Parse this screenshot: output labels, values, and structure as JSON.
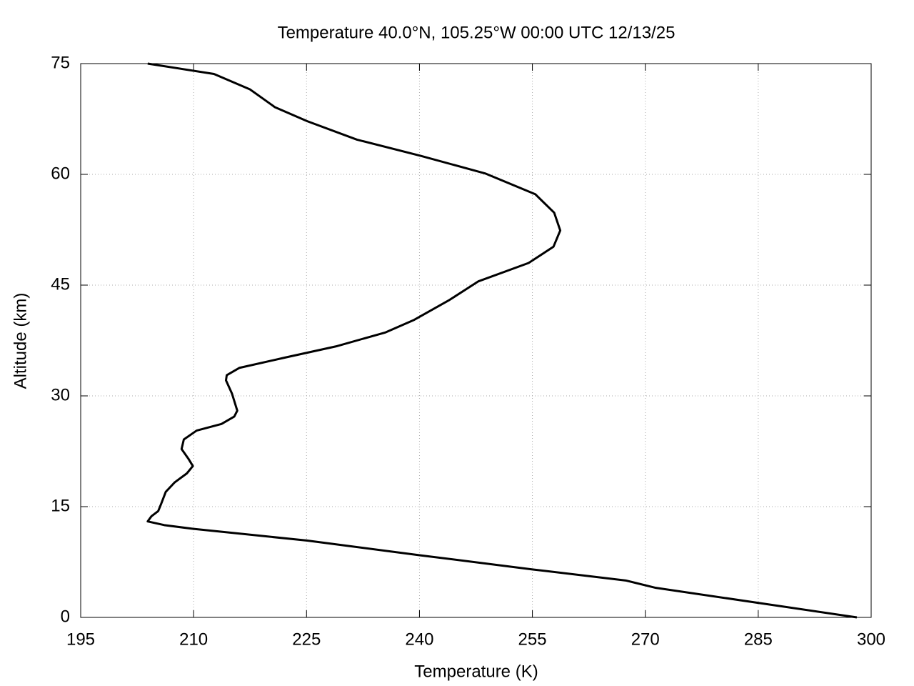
{
  "chart_data": {
    "type": "line",
    "title": "Temperature 40.0°N, 105.25°W 00:00 UTC 12/13/25",
    "x_label": "Temperature (K)",
    "y_label": "Altitude (km)",
    "xlim": [
      195,
      300
    ],
    "xticks": [
      195,
      210,
      225,
      240,
      255,
      270,
      285,
      300
    ],
    "ylim": [
      0,
      75
    ],
    "yticks": [
      0,
      15,
      30,
      45,
      60,
      75
    ],
    "grid": true,
    "series": [
      {
        "color": "#000000",
        "x": [
          298.1,
          284.8,
          271.4,
          267.4,
          255,
          240.2,
          225.1,
          209.9,
          206.1,
          203.9,
          204.4,
          205.3,
          205.7,
          206.3,
          207.5,
          209.1,
          209.9,
          209.3,
          208.4,
          208.7,
          210.4,
          213.7,
          215.4,
          215.8,
          215.1,
          214.3,
          214.4,
          216.1,
          222.2,
          228.9,
          235.5,
          239.3,
          244.0,
          247.8,
          254.5,
          257.8,
          258.7,
          257.9,
          255.4,
          248.8,
          240.2,
          231.7,
          225.1,
          220.8,
          217.5,
          212.7,
          203.9
        ],
        "values": [
          0,
          2.0,
          4.0,
          5.0,
          6.5,
          8.4,
          10.4,
          12.0,
          12.5,
          13.0,
          13.7,
          14.4,
          15.4,
          17.0,
          18.3,
          19.5,
          20.5,
          21.5,
          22.8,
          24.1,
          25.3,
          26.2,
          27.2,
          28.0,
          30.3,
          32.1,
          32.8,
          33.8,
          35.2,
          36.7,
          38.6,
          40.3,
          43.0,
          45.5,
          48.0,
          50.2,
          52.4,
          54.8,
          57.3,
          60.1,
          62.5,
          64.7,
          67.2,
          69.1,
          71.5,
          73.6,
          75.0
        ]
      }
    ]
  }
}
